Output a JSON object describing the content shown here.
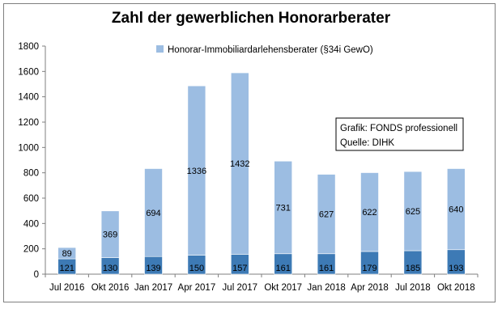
{
  "chart_data": {
    "type": "bar",
    "stacked": true,
    "title": "Zahl der gewerblichen Honorarberater",
    "categories": [
      "Jul 2016",
      "Okt 2016",
      "Jan 2017",
      "Apr 2017",
      "Jul 2017",
      "Okt 2017",
      "Jan 2018",
      "Apr 2018",
      "Jul 2018",
      "Okt 2018"
    ],
    "series": [
      {
        "name": "",
        "color": "#3d7ab5",
        "values": [
          121,
          130,
          139,
          150,
          157,
          161,
          161,
          179,
          185,
          193
        ]
      },
      {
        "name": "Honorar-Immobiliardarlehensberater (§34i GewO)",
        "color": "#9cbde2",
        "values": [
          89,
          369,
          694,
          1336,
          1432,
          731,
          627,
          622,
          625,
          640
        ]
      }
    ],
    "ylim": [
      0,
      1800
    ],
    "yticks": [
      0,
      200,
      400,
      600,
      800,
      1000,
      1200,
      1400,
      1600,
      1800
    ],
    "grid": false,
    "legend_position": "top-center",
    "annotation": [
      "Grafik: FONDS professionell",
      "Quelle: DIHK"
    ]
  }
}
